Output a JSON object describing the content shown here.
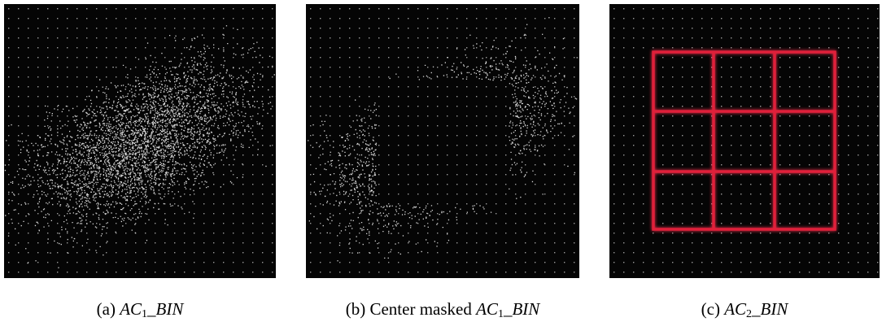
{
  "figure": {
    "panels": [
      {
        "label": "(a)",
        "prefix": "",
        "math": "AC",
        "sub": "1",
        "suffix": "_BIN"
      },
      {
        "label": "(b)",
        "prefix": "Center masked ",
        "math": "AC",
        "sub": "1",
        "suffix": "_BIN"
      },
      {
        "label": "(c)",
        "prefix": "",
        "math": "AC",
        "sub": "2",
        "suffix": "_BIN"
      }
    ]
  }
}
